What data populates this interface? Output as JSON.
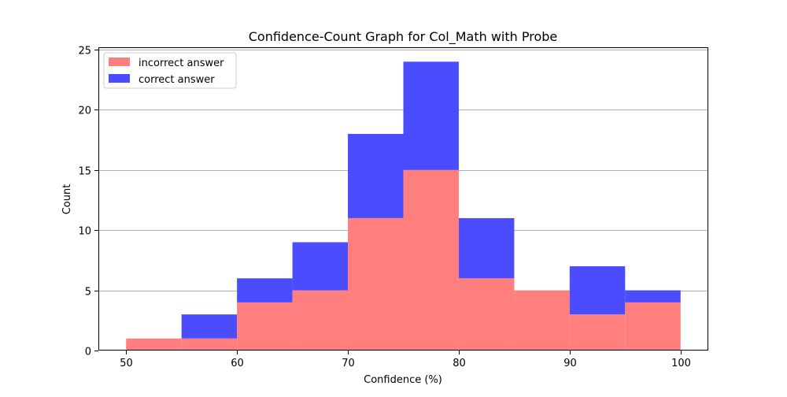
{
  "chart_data": {
    "type": "bar",
    "title": "Confidence-Count Graph for Col_Math with Probe",
    "xlabel": "Confidence (%)",
    "ylabel": "Count",
    "xlim": [
      47.5,
      102.5
    ],
    "ylim": [
      0,
      25.2
    ],
    "xticks": [
      50,
      60,
      70,
      80,
      90,
      100
    ],
    "yticks": [
      0,
      5,
      10,
      15,
      20,
      25
    ],
    "grid": "horizontal",
    "legend_position": "top-left",
    "bin_edges": [
      50,
      55,
      60,
      65,
      70,
      75,
      80,
      85,
      90,
      95,
      100
    ],
    "series": [
      {
        "name": "incorrect answer",
        "color": "#ff7f7f",
        "values": [
          1,
          1,
          4,
          5,
          11,
          15,
          6,
          5,
          3,
          4
        ]
      },
      {
        "name": "correct answer",
        "color": "#4c4cff",
        "values": [
          0,
          3,
          6,
          9,
          18,
          24,
          11,
          5,
          7,
          5
        ]
      }
    ]
  }
}
